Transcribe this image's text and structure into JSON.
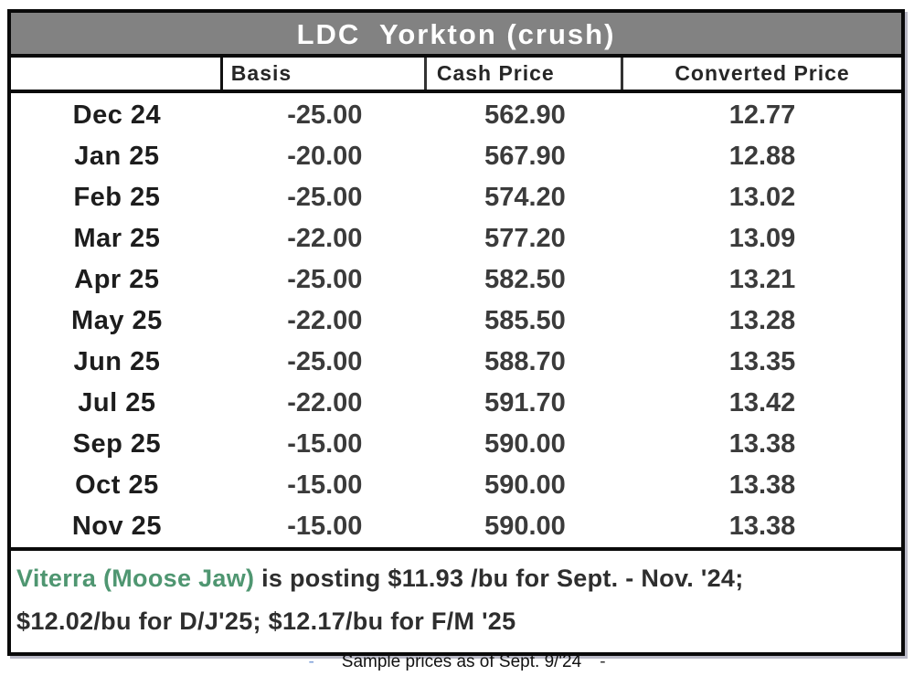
{
  "table": {
    "title": "LDC  Yorkton (crush)",
    "columns": {
      "month": "",
      "basis": "Basis",
      "cash": "Cash Price",
      "converted": "Converted Price"
    },
    "rows": [
      {
        "month": "Dec 24",
        "basis": "-25.00",
        "cash": "562.90",
        "converted": "12.77"
      },
      {
        "month": "Jan 25",
        "basis": "-20.00",
        "cash": "567.90",
        "converted": "12.88"
      },
      {
        "month": "Feb 25",
        "basis": "-25.00",
        "cash": "574.20",
        "converted": "13.02"
      },
      {
        "month": "Mar 25",
        "basis": "-22.00",
        "cash": "577.20",
        "converted": "13.09"
      },
      {
        "month": "Apr 25",
        "basis": "-25.00",
        "cash": "582.50",
        "converted": "13.21"
      },
      {
        "month": "May 25",
        "basis": "-22.00",
        "cash": "585.50",
        "converted": "13.28"
      },
      {
        "month": "Jun 25",
        "basis": "-25.00",
        "cash": "588.70",
        "converted": "13.35"
      },
      {
        "month": "Jul 25",
        "basis": "-22.00",
        "cash": "591.70",
        "converted": "13.42"
      },
      {
        "month": "Sep 25",
        "basis": "-15.00",
        "cash": "590.00",
        "converted": "13.38"
      },
      {
        "month": "Oct 25",
        "basis": "-15.00",
        "cash": "590.00",
        "converted": "13.38"
      },
      {
        "month": "Nov 25",
        "basis": "-15.00",
        "cash": "590.00",
        "converted": "13.38"
      }
    ]
  },
  "note": {
    "highlight": "Viterra (Moose Jaw)",
    "line1_rest": " is posting $11.93 /bu for Sept. - Nov. '24;",
    "line2": "$12.02/bu for D/J'25; $12.17/bu for F/M '25"
  },
  "caption": {
    "left_dash": "-",
    "text": "Sample prices as of Sept. 9/'24",
    "right_dash": "-"
  },
  "colors": {
    "title_bar_bg": "#828282",
    "title_text": "#ffffff",
    "border_black": "#0a0a0a",
    "note_highlight_green": "#4f9671",
    "caption_dash_blue": "#7d9fd8",
    "body_text": "#2e2e2e"
  }
}
